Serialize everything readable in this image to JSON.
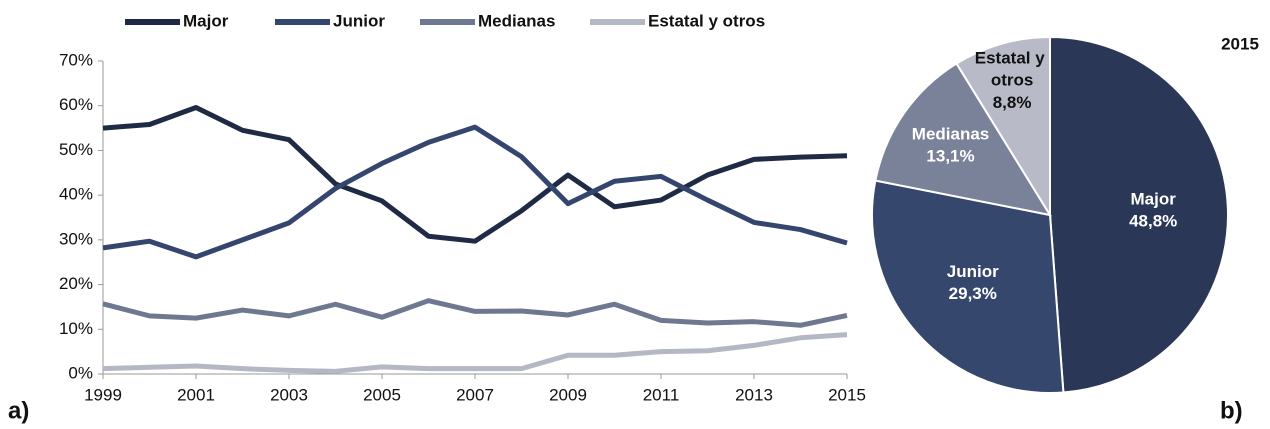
{
  "chart_data": [
    {
      "type": "line",
      "panel_label": "a)",
      "legend": "top",
      "x": [
        1999,
        2000,
        2001,
        2002,
        2003,
        2004,
        2005,
        2006,
        2007,
        2008,
        2009,
        2010,
        2011,
        2012,
        2013,
        2014,
        2015
      ],
      "xlim": [
        1999,
        2015
      ],
      "xticks": [
        1999,
        2001,
        2003,
        2005,
        2007,
        2009,
        2011,
        2013,
        2015
      ],
      "ylim": [
        0,
        70
      ],
      "yticks": [
        {
          "value": 0,
          "label": "0%"
        },
        {
          "value": 10,
          "label": "10%"
        },
        {
          "value": 20,
          "label": "20%"
        },
        {
          "value": 30,
          "label": "30%"
        },
        {
          "value": 40,
          "label": "40%"
        },
        {
          "value": 50,
          "label": "50%"
        },
        {
          "value": 60,
          "label": "60%"
        },
        {
          "value": 70,
          "label": "70%"
        }
      ],
      "series": [
        {
          "name": "Major",
          "color": "#1f2a44",
          "values": [
            55,
            55.8,
            59.6,
            54.5,
            52.4,
            42.5,
            38.7,
            30.8,
            29.7,
            36.5,
            44.5,
            37.4,
            38.9,
            44.5,
            48,
            48.5,
            48.8
          ]
        },
        {
          "name": "Junior",
          "color": "#34466e",
          "values": [
            28.2,
            29.7,
            26.2,
            30,
            33.8,
            41.5,
            47.1,
            51.8,
            55.2,
            48.6,
            38.1,
            43.1,
            44.2,
            38.9,
            33.9,
            32.3,
            29.3
          ]
        },
        {
          "name": "Medianas",
          "color": "#6e7890",
          "values": [
            15.7,
            13,
            12.5,
            14.3,
            13,
            15.6,
            12.7,
            16.4,
            14,
            14.1,
            13.2,
            15.6,
            12,
            11.4,
            11.7,
            10.9,
            13.1
          ]
        },
        {
          "name": "Estatal y otros",
          "color": "#b4b8c4",
          "values": [
            1.2,
            1.5,
            1.8,
            1.2,
            0.8,
            0.6,
            1.6,
            1.2,
            1.2,
            1.2,
            4.2,
            4.2,
            5,
            5.2,
            6.4,
            8.1,
            8.8
          ]
        }
      ]
    },
    {
      "type": "pie",
      "panel_label": "b)",
      "title": "2015",
      "categories": [
        "Major",
        "Junior",
        "Medianas",
        "Estatal y otros"
      ],
      "values": [
        48.8,
        29.3,
        13.1,
        8.8
      ],
      "value_labels": [
        "48,8%",
        "29,3%",
        "13,1%",
        "8,8%"
      ],
      "colors": [
        "#2b3756",
        "#36476e",
        "#7a8299",
        "#b8bbc7"
      ]
    }
  ]
}
